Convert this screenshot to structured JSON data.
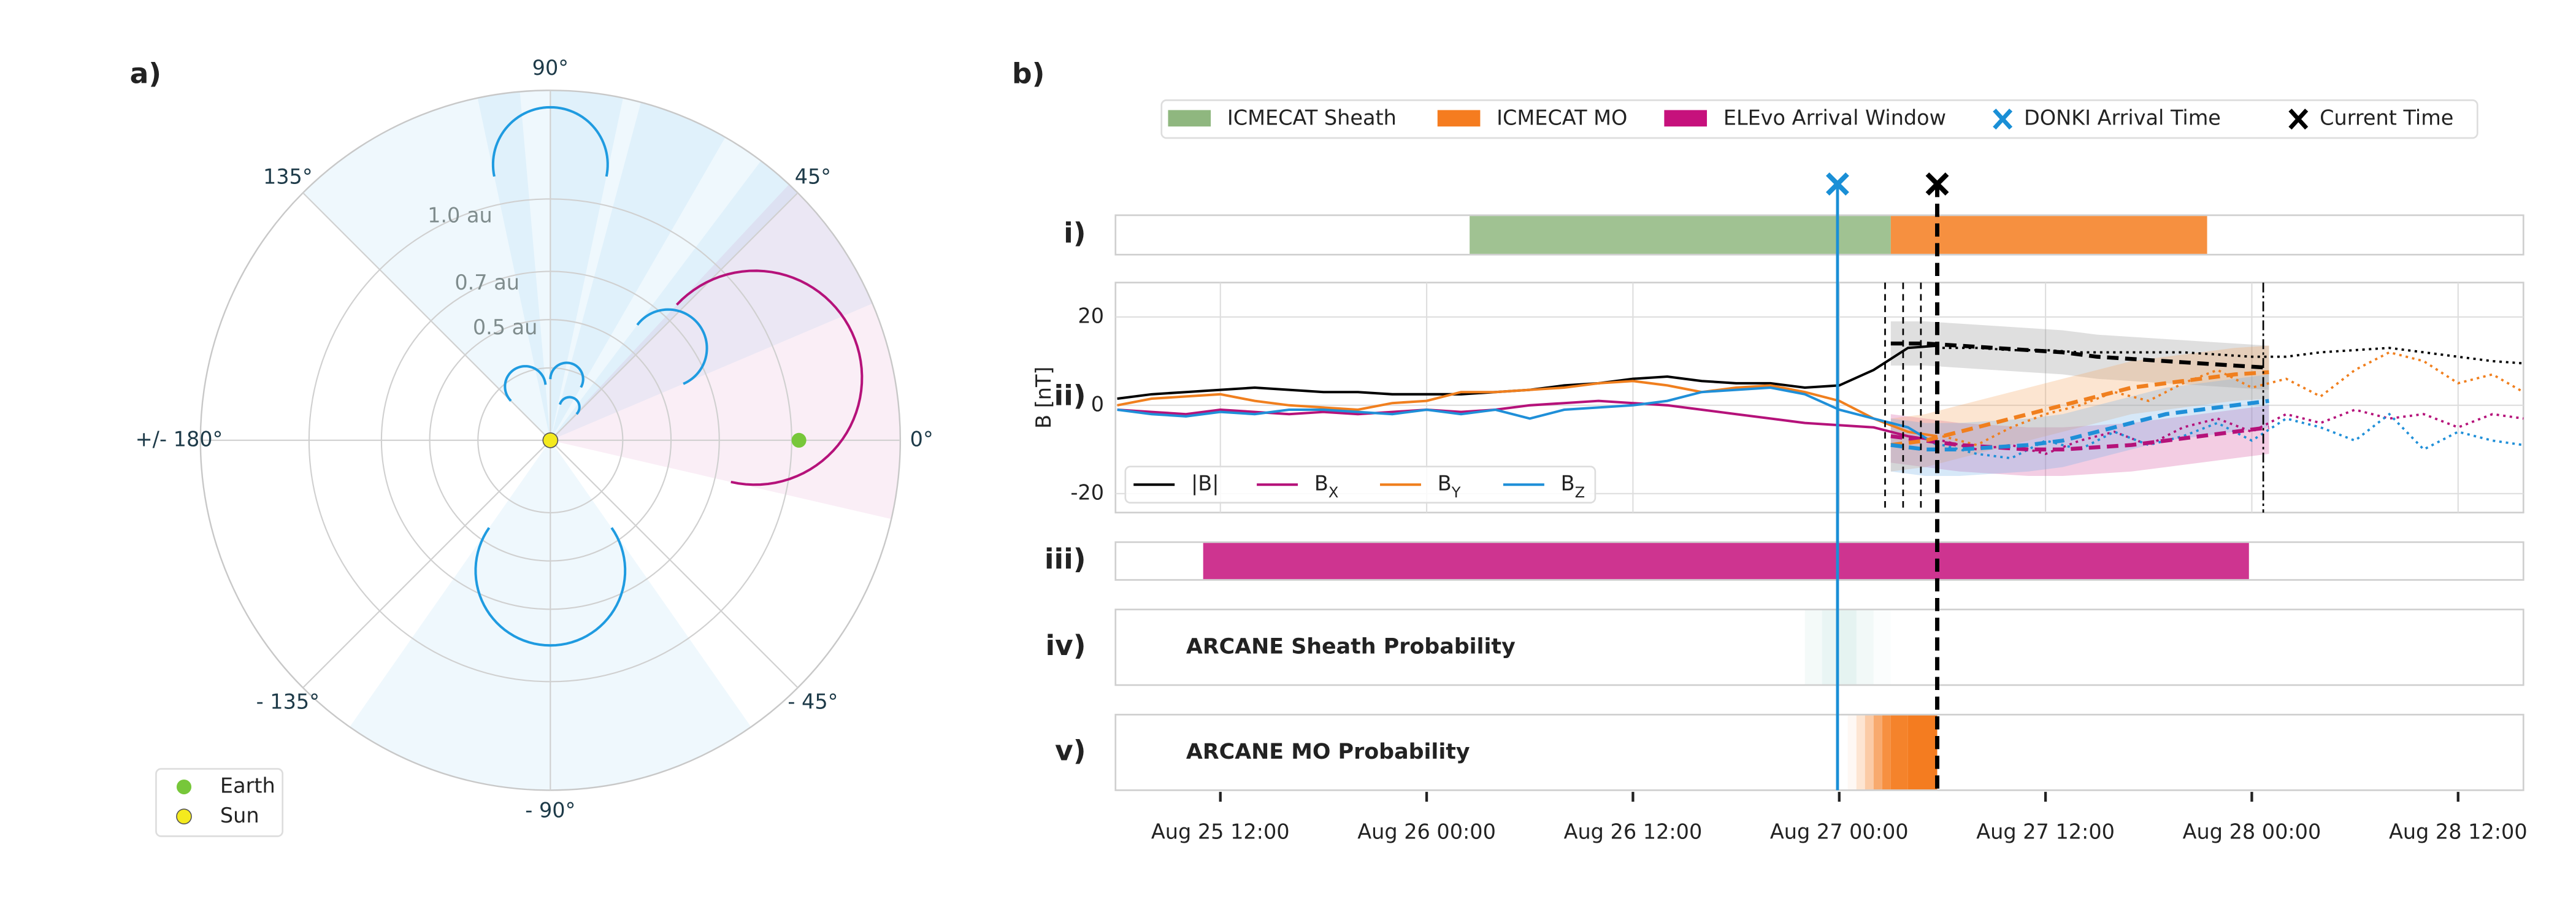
{
  "chart_data": [
    {
      "type": "polar",
      "label": "a)",
      "rlim": [
        0,
        1.45
      ],
      "rgrid": [
        0.3,
        0.5,
        0.7,
        1.0
      ],
      "rticks": [
        {
          "value": 0.5,
          "label": "0.5 au"
        },
        {
          "value": 0.7,
          "label": "0.7 au"
        },
        {
          "value": 1.0,
          "label": "1.0 au"
        }
      ],
      "thetaticks": [
        {
          "value": 0,
          "label": "0°"
        },
        {
          "value": 45,
          "label": "45°"
        },
        {
          "value": 90,
          "label": "90°"
        },
        {
          "value": 135,
          "label": "135°"
        },
        {
          "value": 180,
          "label": "+/- 180°"
        },
        {
          "value": -135,
          "label": "- 135°"
        },
        {
          "value": -90,
          "label": "- 90°"
        },
        {
          "value": -45,
          "label": "- 45°"
        }
      ],
      "cmes": [
        {
          "theta": 90,
          "distance": 1.38,
          "half_width": 12,
          "color": "#1f9be0"
        },
        {
          "theta": 38,
          "distance": 0.78,
          "half_width": 15,
          "color": "#1f9be0"
        },
        {
          "theta": -90,
          "distance": 0.85,
          "half_width": 35,
          "color": "#1f9be0"
        },
        {
          "theta": 115,
          "distance": 0.33,
          "half_width": 20,
          "color": "#1f9be0"
        },
        {
          "theta": 75,
          "distance": 0.33,
          "half_width": 15,
          "color": "#1f9be0"
        },
        {
          "theta": 60,
          "distance": 0.2,
          "half_width": 15,
          "color": "#1f9be0"
        },
        {
          "theta": 17,
          "distance": 1.33,
          "half_width": 30,
          "color": "#b5127a"
        }
      ],
      "bodies": [
        {
          "name": "Earth",
          "color": "#77c73a",
          "theta": 0,
          "r": 1.03
        },
        {
          "name": "Sun",
          "color": "#f4ea1e",
          "theta": 0,
          "r": 0
        }
      ],
      "legend": "lower left"
    },
    {
      "type": "timeline",
      "label": "b)",
      "xlim": [
        "Aug 25 05:54",
        "Aug 28 15:48"
      ],
      "xticks": [
        "Aug 25 12:00",
        "Aug 26 00:00",
        "Aug 26 12:00",
        "Aug 27 00:00",
        "Aug 27 12:00",
        "Aug 28 00:00",
        "Aug 28 12:00"
      ],
      "rows": [
        {
          "label": "i)",
          "spans": [
            {
              "name": "ICMECAT Sheath",
              "color": "#8fb77f",
              "start": "Aug 26 02:30",
              "end": "Aug 27 03:00"
            },
            {
              "name": "ICMECAT MO",
              "color": "#f57c1f",
              "start": "Aug 27 03:00",
              "end": "Aug 27 21:24"
            }
          ]
        },
        {
          "label": "ii)",
          "ylabel": "B [nT]",
          "ylim": [
            -24.3,
            27.8
          ],
          "yticks": [
            -20,
            0,
            20
          ],
          "grid": true,
          "legend": "lower left",
          "event_lines": [
            {
              "time": "Aug 27 02:40",
              "style": "dashed"
            },
            {
              "time": "Aug 27 03:43",
              "style": "dashed"
            },
            {
              "time": "Aug 27 04:45",
              "style": "dashed"
            },
            {
              "time": "Aug 28 00:40",
              "style": "dashdot"
            }
          ],
          "x": [
            "Aug 25 06:00",
            "Aug 25 08:00",
            "Aug 25 10:00",
            "Aug 25 12:00",
            "Aug 25 14:00",
            "Aug 25 16:00",
            "Aug 25 18:00",
            "Aug 25 20:00",
            "Aug 25 22:00",
            "Aug 26 00:00",
            "Aug 26 02:00",
            "Aug 26 04:00",
            "Aug 26 06:00",
            "Aug 26 08:00",
            "Aug 26 10:00",
            "Aug 26 12:00",
            "Aug 26 14:00",
            "Aug 26 16:00",
            "Aug 26 18:00",
            "Aug 26 20:00",
            "Aug 26 22:00",
            "Aug 27 00:00",
            "Aug 27 02:00",
            "Aug 27 04:00",
            "Aug 27 05:42"
          ],
          "series": [
            {
              "name": "|B|",
              "color": "#000000",
              "values": [
                1.5,
                2.5,
                3,
                3.5,
                4,
                3.5,
                3,
                3,
                2.5,
                2.5,
                2.5,
                3,
                3.5,
                4.5,
                5,
                6,
                6.5,
                5.5,
                5,
                5,
                4,
                4.5,
                8,
                13,
                13.5
              ]
            },
            {
              "name": "B_X",
              "color": "#b5127a",
              "values": [
                -1,
                -1.5,
                -2,
                -1,
                -1.5,
                -2,
                -1.5,
                -2,
                -1.5,
                -1,
                -1.5,
                -1,
                0,
                0.5,
                1,
                0.5,
                0,
                -1,
                -2,
                -3,
                -4,
                -4.5,
                -5,
                -7,
                -8
              ]
            },
            {
              "name": "B_Y",
              "color": "#f07f1e",
              "values": [
                0,
                1.5,
                2,
                2.5,
                1,
                0,
                -0.5,
                -1,
                0.5,
                1,
                3,
                3,
                3.5,
                4,
                5,
                5.5,
                4.5,
                3,
                4,
                4.5,
                3,
                1,
                -3,
                -6,
                -7
              ]
            },
            {
              "name": "B_Z",
              "color": "#1f8fd8",
              "values": [
                -1,
                -2,
                -2.5,
                -1.5,
                -2,
                -1,
                -1,
                -1.5,
                -2,
                -1,
                -2,
                -1,
                -3,
                -1,
                -0.5,
                0,
                1,
                3,
                3.5,
                4,
                2.5,
                -1,
                -3,
                -5,
                -9
              ]
            }
          ],
          "forecast": {
            "x": [
              "Aug 27 03:00",
              "Aug 27 05:00",
              "Aug 27 07:00",
              "Aug 27 09:00",
              "Aug 27 11:00",
              "Aug 27 13:00",
              "Aug 27 15:00",
              "Aug 27 17:00",
              "Aug 27 19:00",
              "Aug 27 21:00",
              "Aug 27 23:00",
              "Aug 28 01:00"
            ],
            "series": [
              {
                "color": "#000000",
                "band_color": "#8c8c8c",
                "values": [
                  14,
                  14,
                  13.5,
                  13,
                  12.5,
                  12,
                  11,
                  10.5,
                  10,
                  9.5,
                  9,
                  8.5
                ],
                "lower": [
                  9,
                  9,
                  8.5,
                  8,
                  7.5,
                  7,
                  6,
                  5.5,
                  5,
                  4.5,
                  4,
                  3.5
                ],
                "upper": [
                  19,
                  19,
                  18.5,
                  18,
                  17.5,
                  17,
                  16,
                  15.5,
                  15,
                  14.5,
                  14,
                  13.5
                ]
              },
              {
                "color": "#b5127a",
                "band_color": "#d44a9c",
                "values": [
                  -7,
                  -8,
                  -9,
                  -9.5,
                  -10,
                  -10,
                  -9.5,
                  -9,
                  -8,
                  -7,
                  -6,
                  -5
                ],
                "lower": [
                  -13,
                  -14,
                  -15,
                  -15.5,
                  -16,
                  -16,
                  -15.5,
                  -15,
                  -14,
                  -13,
                  -12,
                  -11
                ],
                "upper": [
                  -2,
                  -3,
                  -4,
                  -4.5,
                  -5,
                  -5,
                  -4.5,
                  -4,
                  -3,
                  -2,
                  -1,
                  0
                ]
              },
              {
                "color": "#f07f1e",
                "band_color": "#f5a35a",
                "values": [
                  -9,
                  -8,
                  -6,
                  -4,
                  -2,
                  0,
                  2,
                  4,
                  5,
                  6,
                  7,
                  7.5
                ],
                "lower": [
                  -15,
                  -14,
                  -12,
                  -10,
                  -8,
                  -6,
                  -4,
                  -2,
                  -1,
                  0,
                  1,
                  1.5
                ],
                "upper": [
                  -3,
                  -2,
                  0,
                  2,
                  4,
                  6,
                  8,
                  10,
                  11,
                  12,
                  13,
                  13.5
                ]
              },
              {
                "color": "#1f8fd8",
                "band_color": "#6aaee6",
                "values": [
                  -9,
                  -10,
                  -10,
                  -9.5,
                  -9,
                  -8,
                  -6,
                  -4,
                  -2,
                  -1,
                  0,
                  1
                ],
                "lower": [
                  -15,
                  -16,
                  -16,
                  -15.5,
                  -15,
                  -14,
                  -12,
                  -10,
                  -8,
                  -7,
                  -6,
                  -5
                ],
                "upper": [
                  -3,
                  -4,
                  -4,
                  -3.5,
                  -3,
                  -2,
                  0,
                  2,
                  4,
                  5,
                  6,
                  7
                ]
              }
            ]
          },
          "later": {
            "x": [
              "Aug 27 06:00",
              "Aug 27 08:00",
              "Aug 27 10:00",
              "Aug 27 12:00",
              "Aug 27 14:00",
              "Aug 27 16:00",
              "Aug 27 18:00",
              "Aug 27 20:00",
              "Aug 27 22:00",
              "Aug 28 00:00",
              "Aug 28 02:00",
              "Aug 28 04:00",
              "Aug 28 06:00",
              "Aug 28 08:00",
              "Aug 28 10:00",
              "Aug 28 12:00",
              "Aug 28 14:00",
              "Aug 28 15:48"
            ],
            "series": [
              {
                "color": "#000000",
                "values": [
                  13,
                  13,
                  12.5,
                  12.5,
                  12,
                  12,
                  12,
                  12,
                  11.5,
                  11,
                  11,
                  12,
                  12.5,
                  13,
                  12,
                  11,
                  10,
                  9.5
                ]
              },
              {
                "color": "#b5127a",
                "values": [
                  -8,
                  -10,
                  -9,
                  -11,
                  -8,
                  -6,
                  -9,
                  -5,
                  -3,
                  -6,
                  -2,
                  -4,
                  -1,
                  -3,
                  -2,
                  -5,
                  -2,
                  -3
                ]
              },
              {
                "color": "#f07f1e",
                "values": [
                  -7,
                  -9,
                  -5,
                  -2,
                  0,
                  3,
                  1,
                  5,
                  8,
                  4,
                  6,
                  2,
                  8,
                  12,
                  10,
                  5,
                  7,
                  3
                ]
              },
              {
                "color": "#1f8fd8",
                "values": [
                  -9,
                  -11,
                  -12,
                  -8,
                  -10,
                  -6,
                  -9,
                  -7,
                  -4,
                  -8,
                  -3,
                  -5,
                  -8,
                  -2,
                  -10,
                  -6,
                  -8,
                  -9
                ]
              }
            ]
          }
        },
        {
          "label": "iii)",
          "spans": [
            {
              "name": "ELEvo Arrival Window",
              "color": "#c6117c",
              "start": "Aug 25 11:00",
              "end": "Aug 27 23:50"
            }
          ]
        },
        {
          "label": "iv)",
          "title": "ARCANE Sheath Probability",
          "color": "#2a9d8f",
          "x": [
            "Aug 26 22:00",
            "Aug 26 23:00",
            "Aug 27 00:00",
            "Aug 27 01:00",
            "Aug 27 02:00"
          ],
          "values": [
            0.05,
            0.1,
            0.12,
            0.06,
            0.02
          ],
          "end": "Aug 27 03:00"
        },
        {
          "label": "v)",
          "title": "ARCANE MO Probability",
          "color": "#f47c20",
          "x": [
            "Aug 27 00:30",
            "Aug 27 01:00",
            "Aug 27 01:30",
            "Aug 27 02:00",
            "Aug 27 02:30",
            "Aug 27 03:00",
            "Aug 27 04:00"
          ],
          "values": [
            0.05,
            0.2,
            0.4,
            0.65,
            0.85,
            0.95,
            1
          ],
          "end": "Aug 27 05:42"
        }
      ],
      "markers": [
        {
          "name": "DONKI Arrival Time",
          "color": "#1a8fd6",
          "time": "Aug 26 23:54",
          "style": "solid"
        },
        {
          "name": "Current Time",
          "color": "#000000",
          "time": "Aug 27 05:42",
          "style": "dashed"
        }
      ]
    }
  ]
}
